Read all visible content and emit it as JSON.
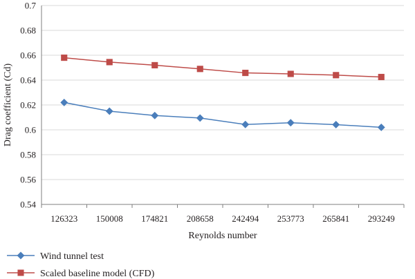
{
  "chart_data": {
    "type": "line",
    "xlabel": "Reynolds number",
    "ylabel": "Drag coefficient (Cd)",
    "categories": [
      "126323",
      "150008",
      "174821",
      "208658",
      "242494",
      "253773",
      "265841",
      "293249"
    ],
    "ylim": [
      0.54,
      0.7
    ],
    "yticks": [
      "0.54",
      "0.56",
      "0.58",
      "0.6",
      "0.62",
      "0.64",
      "0.66",
      "0.68",
      "0.7"
    ],
    "grid": "horizontal",
    "legend_position": "bottom-left",
    "series": [
      {
        "name": "Wind tunnel test",
        "marker": "diamond",
        "color": "#4a7ebb",
        "values": [
          0.622,
          0.615,
          0.6115,
          0.6095,
          0.6043,
          0.6057,
          0.6042,
          0.602
        ]
      },
      {
        "name": "Scaled baseline model (CFD)",
        "marker": "square",
        "color": "#be4b48",
        "values": [
          0.658,
          0.6545,
          0.652,
          0.649,
          0.6458,
          0.645,
          0.644,
          0.6425
        ]
      }
    ]
  }
}
